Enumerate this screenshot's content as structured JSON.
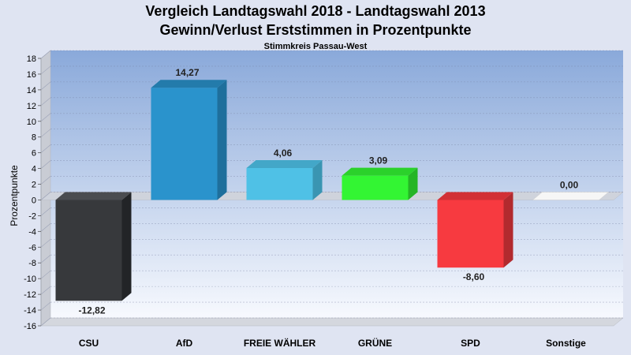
{
  "chart_data": {
    "type": "bar",
    "title": "Vergleich Landtagswahl 2018 - Landtagswahl 2013",
    "subtitle": "Gewinn/Verlust Erststimmen in Prozentpunkte",
    "caption": "Stimmkreis Passau-West",
    "ylabel": "Prozentpunkte",
    "xlabel": "",
    "ylim": [
      -16,
      18
    ],
    "yticks": [
      18,
      16,
      14,
      12,
      10,
      8,
      6,
      4,
      2,
      0,
      -2,
      -4,
      -6,
      -8,
      -10,
      -12,
      -14,
      -16
    ],
    "grid": true,
    "categories": [
      "CSU",
      "AfD",
      "FREIE WÄHLER",
      "GRÜNE",
      "SPD",
      "Sonstige"
    ],
    "values": [
      -12.82,
      14.27,
      4.06,
      3.09,
      -8.6,
      0.0
    ],
    "value_labels": [
      "-12,82",
      "14,27",
      "4,06",
      "3,09",
      "-8,60",
      "0,00"
    ],
    "colors": [
      "#37393c",
      "#2a93cc",
      "#4fc1e6",
      "#33f533",
      "#f73a40",
      "#ececec"
    ],
    "side_colors": [
      "#222427",
      "#1e6f9c",
      "#3a95b2",
      "#25b525",
      "#b22a2e",
      "#c9c9c9"
    ],
    "top_colors": [
      "#4a4c50",
      "#237bab",
      "#43a7c8",
      "#2bd12b",
      "#d23035",
      "#f6f6f6"
    ]
  }
}
